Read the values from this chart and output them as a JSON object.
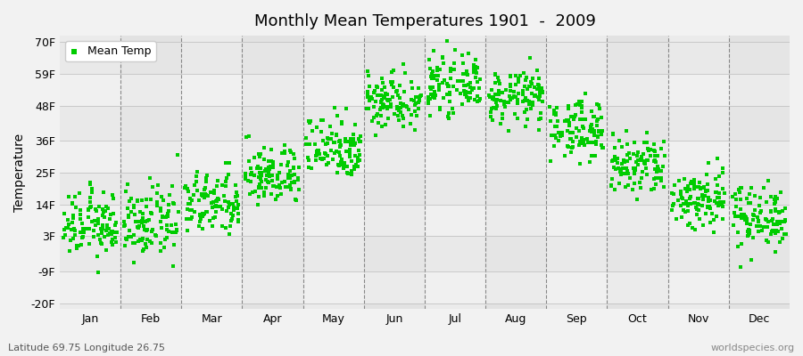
{
  "title": "Monthly Mean Temperatures 1901  -  2009",
  "ylabel": "Temperature",
  "xlabel_bottom_left": "Latitude 69.75 Longitude 26.75",
  "xlabel_bottom_right": "worldspecies.org",
  "yticks": [
    -20,
    -9,
    3,
    14,
    25,
    36,
    48,
    59,
    70
  ],
  "ytick_labels": [
    "-20F",
    "-9F",
    "3F",
    "14F",
    "25F",
    "36F",
    "48F",
    "59F",
    "70F"
  ],
  "ylim": [
    -22,
    72
  ],
  "months": [
    "Jan",
    "Feb",
    "Mar",
    "Apr",
    "May",
    "Jun",
    "Jul",
    "Aug",
    "Sep",
    "Oct",
    "Nov",
    "Dec"
  ],
  "dot_color": "#00cc00",
  "dot_size": 6,
  "bg_color": "#f2f2f2",
  "band_light": "#ebebeb",
  "band_dark": "#dcdcdc",
  "legend_label": "Mean Temp",
  "num_years": 109,
  "monthly_mean_temps_f": {
    "Jan": 7.0,
    "Feb": 7.5,
    "Mar": 14.0,
    "Apr": 24.0,
    "May": 34.0,
    "Jun": 50.0,
    "Jul": 55.0,
    "Aug": 51.0,
    "Sep": 40.0,
    "Oct": 27.0,
    "Nov": 16.0,
    "Dec": 10.0
  },
  "monthly_std_temps_f": {
    "Jan": 5.5,
    "Feb": 6.0,
    "Mar": 5.5,
    "Apr": 5.0,
    "May": 5.5,
    "Jun": 5.0,
    "Jul": 4.5,
    "Aug": 4.5,
    "Sep": 5.0,
    "Oct": 5.5,
    "Nov": 5.5,
    "Dec": 5.5
  }
}
